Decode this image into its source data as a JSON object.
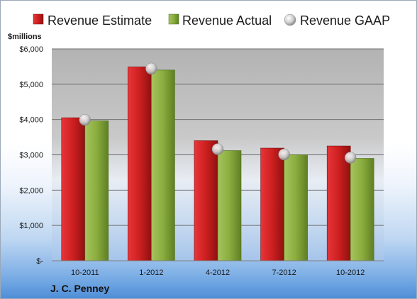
{
  "company": "J. C. Penney",
  "chart_data": {
    "type": "bar",
    "unit_label": "$millions",
    "categories": [
      "10-2011",
      "1-2012",
      "4-2012",
      "7-2012",
      "10-2012"
    ],
    "series": [
      {
        "name": "Revenue Estimate",
        "kind": "bar",
        "color": "#cc1f1f",
        "values": [
          4050,
          5490,
          3400,
          3190,
          3250
        ]
      },
      {
        "name": "Revenue Actual",
        "kind": "bar",
        "color": "#8aad3e",
        "values": [
          3960,
          5400,
          3120,
          3000,
          2900
        ]
      },
      {
        "name": "Revenue GAAP",
        "kind": "marker",
        "color": "#c8c8c8",
        "values": [
          3990,
          5440,
          3160,
          3010,
          2920
        ]
      }
    ],
    "ylim": [
      0,
      6000
    ],
    "yticks": [
      0,
      1000,
      2000,
      3000,
      4000,
      5000,
      6000
    ],
    "ytick_labels": [
      "$-",
      "$1,000",
      "$2,000",
      "$3,000",
      "$4,000",
      "$5,000",
      "$6,000"
    ],
    "grid": true,
    "legend_position": "top"
  }
}
